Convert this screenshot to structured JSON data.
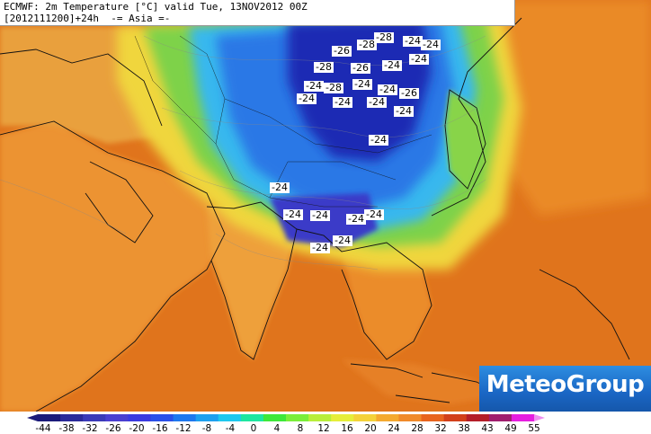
{
  "header": {
    "line1": "ECMWF: 2m Temperature [°C] valid Tue, 13NOV2012 00Z",
    "line2": "[2012111200]+24h  -= Asia =-"
  },
  "logo": {
    "text": "MeteoGroup",
    "color": "#1a66c4"
  },
  "legend": {
    "ticks": [
      "-44",
      "-38",
      "-32",
      "-26",
      "-20",
      "-16",
      "-12",
      "-8",
      "-4",
      "0",
      "4",
      "8",
      "12",
      "16",
      "20",
      "24",
      "28",
      "32",
      "38",
      "43",
      "49",
      "55"
    ],
    "colors": [
      "#1a1a7a",
      "#2a2a9a",
      "#3a3ab8",
      "#4a3fd0",
      "#3a3ae0",
      "#2a50e8",
      "#1e78ee",
      "#1ea0ee",
      "#1ec8ee",
      "#1ee6a0",
      "#3ee83a",
      "#7aee3a",
      "#b8ee3a",
      "#e6ee3a",
      "#f4d23a",
      "#f4aa30",
      "#f08a2a",
      "#e8641e",
      "#d2401a",
      "#b41e28",
      "#a01e6e",
      "#e61ee0"
    ]
  },
  "contour_labels": [
    "-28",
    "-26",
    "-28",
    "-24",
    "-24",
    "-28",
    "-26",
    "-24",
    "-24",
    "-24",
    "-28",
    "-24",
    "-24",
    "-26",
    "-24",
    "-24",
    "-24",
    "-24",
    "-24",
    "-24",
    "-24",
    "-24",
    "-24",
    "-24",
    "-24",
    "-24"
  ],
  "colors": {
    "ocean_warm": "#e2761e",
    "land_warm": "#efa040",
    "cold_core": "#1a2ab8",
    "cool": "#38a0ee",
    "mild": "#7ed84a"
  }
}
